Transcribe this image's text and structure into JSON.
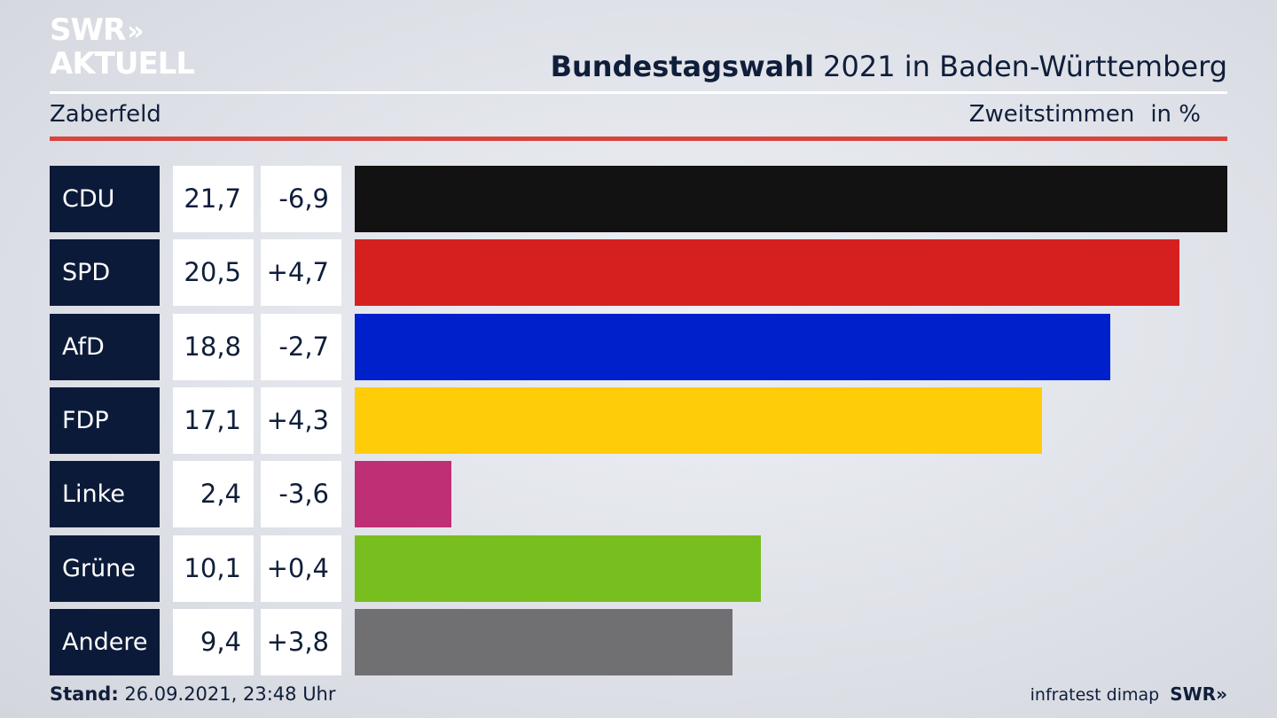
{
  "logo": {
    "line1": "SWR",
    "chevrons": "»",
    "line2": "AKTUELL"
  },
  "header": {
    "title_bold": "Bundestagswahl",
    "title_rest": "2021 in Baden-Württemberg",
    "location": "Zaberfeld",
    "measure": "Zweitstimmen",
    "unit": "in %"
  },
  "chart_data": {
    "type": "bar",
    "orientation": "horizontal",
    "categories": [
      "CDU",
      "SPD",
      "AfD",
      "FDP",
      "Linke",
      "Grüne",
      "Andere"
    ],
    "values": [
      21.7,
      20.5,
      18.8,
      17.1,
      2.4,
      10.1,
      9.4
    ],
    "value_labels": [
      "21,7",
      "20,5",
      "18,8",
      "17,1",
      "2,4",
      "10,1",
      "9,4"
    ],
    "change_labels": [
      "-6,9",
      "+4,7",
      "-2,7",
      "+4,3",
      "-3,6",
      "+0,4",
      "+3,8"
    ],
    "changes": [
      -6.9,
      4.7,
      -2.7,
      4.3,
      -3.6,
      0.4,
      3.8
    ],
    "colors": [
      "#121212",
      "#d62020",
      "#0020cc",
      "#ffcc0a",
      "#bf2f75",
      "#78be1e",
      "#707072"
    ],
    "xlim": [
      0,
      21.7
    ],
    "grid": false
  },
  "footer": {
    "stand_label": "Stand:",
    "stand_value": "26.09.2021, 23:48 Uhr",
    "source": "infratest dimap",
    "brand": "SWR»"
  }
}
